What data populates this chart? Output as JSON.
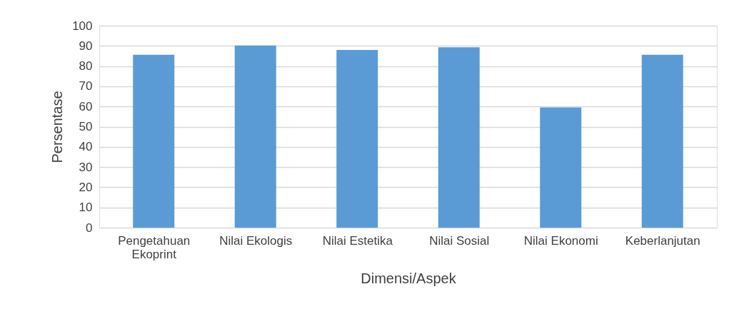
{
  "chart_data": {
    "type": "bar",
    "xlabel": "Dimensi/Aspek",
    "ylabel": "Persentase",
    "categories": [
      "Pengetahuan Ekoprint",
      "Nilai Ekologis",
      "Nilai Estetika",
      "Nilai Sosial",
      "Nilai Ekonomi",
      "Keberlanjutan"
    ],
    "values": [
      85.6,
      90.2,
      88,
      89.3,
      59.5,
      85.6
    ],
    "color": "#5b9bd5",
    "ylim": [
      0,
      100
    ],
    "yticks": [
      0,
      10,
      20,
      30,
      40,
      50,
      60,
      70,
      80,
      90,
      100
    ],
    "grid": "y"
  }
}
